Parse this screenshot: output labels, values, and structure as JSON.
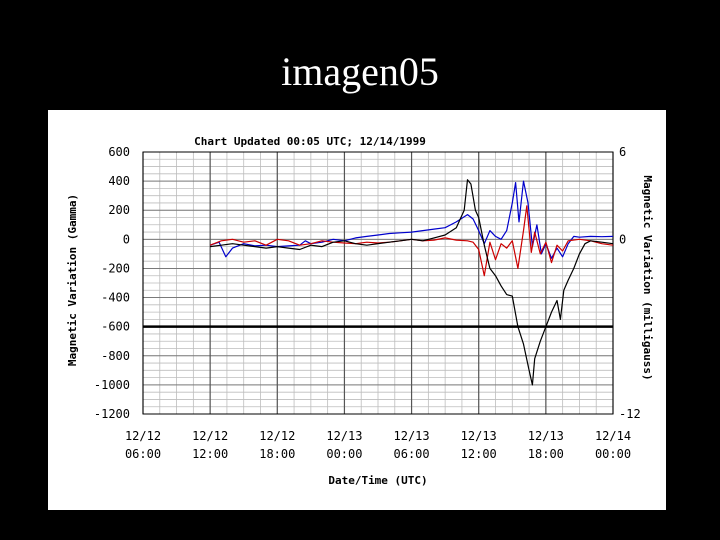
{
  "slide": {
    "title": "imagen05"
  },
  "chart_data": {
    "type": "line",
    "title": "Chart Updated  00:05 UTC;  12/14/1999",
    "xlabel": "Date/Time (UTC)",
    "ylabel_left": "Magnetic Variation (Gamma)",
    "ylabel_right": "Magnetic Variation (milligauss)",
    "ylim_left": [
      -1200,
      600
    ],
    "ylim_right": [
      -12,
      6
    ],
    "y_ticks_left": [
      "600",
      "400",
      "200",
      "0",
      "-200",
      "-400",
      "-600",
      "-800",
      "-1000",
      "-1200"
    ],
    "y_ticks_right": [
      "6",
      "0",
      "-12"
    ],
    "x_ticks": [
      {
        "line1": "12/12",
        "line2": "06:00"
      },
      {
        "line1": "12/12",
        "line2": "12:00"
      },
      {
        "line1": "12/12",
        "line2": "18:00"
      },
      {
        "line1": "12/13",
        "line2": "00:00"
      },
      {
        "line1": "12/13",
        "line2": "06:00"
      },
      {
        "line1": "12/13",
        "line2": "12:00"
      },
      {
        "line1": "12/13",
        "line2": "18:00"
      },
      {
        "line1": "12/14",
        "line2": "00:00"
      }
    ],
    "x_range_hours": [
      0,
      42
    ],
    "grid": true,
    "reference_line": -600,
    "series": [
      {
        "color": "#0000cc",
        "points": [
          [
            6,
            -40
          ],
          [
            6.8,
            -20
          ],
          [
            7.4,
            -120
          ],
          [
            8,
            -60
          ],
          [
            9,
            -30
          ],
          [
            10,
            -45
          ],
          [
            11,
            -40
          ],
          [
            12,
            -50
          ],
          [
            13,
            -45
          ],
          [
            14,
            -40
          ],
          [
            14.5,
            -10
          ],
          [
            15,
            -30
          ],
          [
            16,
            -20
          ],
          [
            17,
            0
          ],
          [
            18,
            -10
          ],
          [
            19,
            10
          ],
          [
            20,
            20
          ],
          [
            21,
            30
          ],
          [
            22,
            40
          ],
          [
            23,
            45
          ],
          [
            24,
            50
          ],
          [
            25,
            60
          ],
          [
            26,
            70
          ],
          [
            27,
            80
          ],
          [
            28,
            120
          ],
          [
            29,
            170
          ],
          [
            29.5,
            140
          ],
          [
            30,
            60
          ],
          [
            30.5,
            -30
          ],
          [
            31,
            60
          ],
          [
            31.5,
            20
          ],
          [
            32,
            0
          ],
          [
            32.5,
            60
          ],
          [
            33,
            250
          ],
          [
            33.3,
            390
          ],
          [
            33.6,
            120
          ],
          [
            34,
            400
          ],
          [
            34.4,
            250
          ],
          [
            34.8,
            -50
          ],
          [
            35.2,
            100
          ],
          [
            35.6,
            -100
          ],
          [
            36,
            -30
          ],
          [
            36.5,
            -130
          ],
          [
            37,
            -60
          ],
          [
            37.5,
            -120
          ],
          [
            38,
            -30
          ],
          [
            38.5,
            20
          ],
          [
            39,
            15
          ],
          [
            40,
            20
          ],
          [
            41,
            18
          ],
          [
            42,
            20
          ]
        ]
      },
      {
        "color": "#cc0000",
        "points": [
          [
            6,
            -40
          ],
          [
            7,
            -10
          ],
          [
            8,
            0
          ],
          [
            9,
            -20
          ],
          [
            10,
            -10
          ],
          [
            11,
            -40
          ],
          [
            12,
            0
          ],
          [
            13,
            -10
          ],
          [
            14,
            -40
          ],
          [
            15,
            -30
          ],
          [
            16,
            -10
          ],
          [
            17,
            -20
          ],
          [
            18,
            -25
          ],
          [
            19,
            -30
          ],
          [
            20,
            -20
          ],
          [
            21,
            -25
          ],
          [
            22,
            -20
          ],
          [
            23,
            -10
          ],
          [
            24,
            0
          ],
          [
            25,
            -10
          ],
          [
            26,
            -5
          ],
          [
            27,
            10
          ],
          [
            28,
            -5
          ],
          [
            29,
            -10
          ],
          [
            29.5,
            -20
          ],
          [
            30,
            -70
          ],
          [
            30.5,
            -250
          ],
          [
            31,
            -20
          ],
          [
            31.5,
            -140
          ],
          [
            32,
            -30
          ],
          [
            32.5,
            -60
          ],
          [
            33,
            -10
          ],
          [
            33.5,
            -200
          ],
          [
            34,
            60
          ],
          [
            34.3,
            230
          ],
          [
            34.7,
            -90
          ],
          [
            35,
            50
          ],
          [
            35.5,
            -100
          ],
          [
            36,
            -20
          ],
          [
            36.5,
            -160
          ],
          [
            37,
            -40
          ],
          [
            37.5,
            -80
          ],
          [
            38,
            -10
          ],
          [
            39,
            0
          ],
          [
            40,
            -10
          ],
          [
            41,
            -30
          ],
          [
            42,
            -40
          ]
        ]
      },
      {
        "color": "#000000",
        "points": [
          [
            6,
            -50
          ],
          [
            7,
            -40
          ],
          [
            8,
            -30
          ],
          [
            9,
            -40
          ],
          [
            10,
            -50
          ],
          [
            11,
            -60
          ],
          [
            12,
            -50
          ],
          [
            13,
            -60
          ],
          [
            14,
            -70
          ],
          [
            15,
            -40
          ],
          [
            16,
            -50
          ],
          [
            17,
            -20
          ],
          [
            18,
            -10
          ],
          [
            19,
            -30
          ],
          [
            20,
            -40
          ],
          [
            21,
            -30
          ],
          [
            22,
            -20
          ],
          [
            23,
            -10
          ],
          [
            24,
            0
          ],
          [
            25,
            -10
          ],
          [
            26,
            10
          ],
          [
            27,
            30
          ],
          [
            28,
            80
          ],
          [
            28.7,
            200
          ],
          [
            29,
            410
          ],
          [
            29.3,
            380
          ],
          [
            29.7,
            200
          ],
          [
            30,
            150
          ],
          [
            30.5,
            -40
          ],
          [
            31,
            -200
          ],
          [
            31.5,
            -250
          ],
          [
            32,
            -320
          ],
          [
            32.5,
            -380
          ],
          [
            33,
            -390
          ],
          [
            33.5,
            -600
          ],
          [
            34,
            -720
          ],
          [
            34.5,
            -900
          ],
          [
            34.8,
            -1000
          ],
          [
            35,
            -820
          ],
          [
            35.5,
            -700
          ],
          [
            36,
            -600
          ],
          [
            36.5,
            -500
          ],
          [
            37,
            -420
          ],
          [
            37.3,
            -550
          ],
          [
            37.6,
            -350
          ],
          [
            38,
            -280
          ],
          [
            38.5,
            -200
          ],
          [
            39,
            -100
          ],
          [
            39.5,
            -30
          ],
          [
            40,
            -10
          ],
          [
            41,
            -20
          ],
          [
            42,
            -30
          ]
        ]
      }
    ]
  }
}
